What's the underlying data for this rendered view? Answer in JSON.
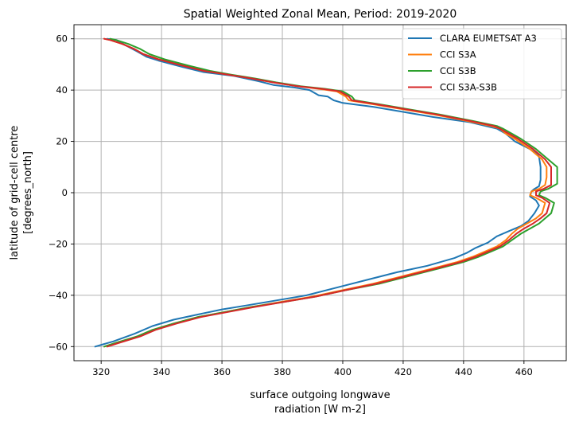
{
  "chart_data": {
    "type": "line",
    "title": "Spatial Weighted Zonal Mean, Period: 2019-2020",
    "xlabel": [
      "surface outgoing longwave",
      "radiation [W m-2]"
    ],
    "ylabel": [
      "latitude of grid-cell centre",
      "[degrees_north]"
    ],
    "xlim": [
      311,
      474
    ],
    "ylim": [
      -65.5,
      65.5
    ],
    "xticks": [
      320,
      340,
      360,
      380,
      400,
      420,
      440,
      460
    ],
    "yticks": [
      -60,
      -40,
      -20,
      0,
      20,
      40,
      60
    ],
    "grid": true,
    "legend_position": "top-right",
    "series": [
      {
        "name": "CLARA EUMETSAT A3",
        "color": "#1f77b4",
        "points": [
          [
            318,
            -60
          ],
          [
            324,
            -58
          ],
          [
            331,
            -55
          ],
          [
            337,
            -52
          ],
          [
            344,
            -49.5
          ],
          [
            352,
            -47.5
          ],
          [
            360,
            -45.5
          ],
          [
            368,
            -44
          ],
          [
            378,
            -42
          ],
          [
            388,
            -40
          ],
          [
            398,
            -37
          ],
          [
            408,
            -34
          ],
          [
            418,
            -31
          ],
          [
            428,
            -28.5
          ],
          [
            437,
            -25.5
          ],
          [
            441,
            -23.5
          ],
          [
            444,
            -21.5
          ],
          [
            448,
            -19.5
          ],
          [
            451,
            -17
          ],
          [
            455,
            -15
          ],
          [
            459,
            -13
          ],
          [
            461.5,
            -11
          ],
          [
            463.5,
            -8
          ],
          [
            465,
            -5
          ],
          [
            464,
            -3
          ],
          [
            462,
            -1.5
          ],
          [
            462.5,
            0.5
          ],
          [
            463.5,
            1.5
          ],
          [
            465,
            2.5
          ],
          [
            465.5,
            5
          ],
          [
            465.5,
            10
          ],
          [
            465,
            14
          ],
          [
            464.5,
            15
          ],
          [
            462,
            17
          ],
          [
            457,
            20
          ],
          [
            454,
            23
          ],
          [
            451,
            25
          ],
          [
            442,
            27.5
          ],
          [
            430,
            29.5
          ],
          [
            420,
            31.5
          ],
          [
            410,
            33.5
          ],
          [
            400,
            35
          ],
          [
            397,
            36
          ],
          [
            395,
            37.5
          ],
          [
            392,
            38
          ],
          [
            389,
            40
          ],
          [
            384,
            41
          ],
          [
            377,
            42
          ],
          [
            372,
            43.5
          ],
          [
            364,
            45.5
          ],
          [
            354,
            47
          ],
          [
            347,
            49
          ],
          [
            339,
            51.5
          ],
          [
            335,
            53
          ],
          [
            332,
            55
          ],
          [
            328,
            57.5
          ],
          [
            325,
            59.5
          ],
          [
            322,
            60
          ]
        ]
      },
      {
        "name": "CCI S3A",
        "color": "#ff7f0e",
        "points": [
          [
            321,
            -60
          ],
          [
            325,
            -58.5
          ],
          [
            332,
            -56
          ],
          [
            337,
            -53.5
          ],
          [
            344,
            -51
          ],
          [
            352,
            -48.5
          ],
          [
            361,
            -46.5
          ],
          [
            370,
            -44.5
          ],
          [
            380,
            -42.5
          ],
          [
            390,
            -40.5
          ],
          [
            400,
            -38
          ],
          [
            410,
            -35.5
          ],
          [
            420,
            -32.5
          ],
          [
            430,
            -29.5
          ],
          [
            438,
            -27
          ],
          [
            443,
            -25
          ],
          [
            447,
            -23
          ],
          [
            451,
            -21
          ],
          [
            454,
            -18.5
          ],
          [
            456,
            -16
          ],
          [
            458,
            -14
          ],
          [
            461,
            -12
          ],
          [
            464,
            -10
          ],
          [
            466,
            -8
          ],
          [
            467,
            -4
          ],
          [
            464,
            -2
          ],
          [
            462,
            -1
          ],
          [
            462.5,
            0.5
          ],
          [
            465,
            1.5
          ],
          [
            467,
            3
          ],
          [
            467.5,
            6
          ],
          [
            467.5,
            10
          ],
          [
            466,
            13
          ],
          [
            462,
            17
          ],
          [
            457,
            21
          ],
          [
            454,
            23
          ],
          [
            452,
            25
          ],
          [
            449,
            26
          ],
          [
            441,
            28
          ],
          [
            430,
            30.5
          ],
          [
            420,
            32.5
          ],
          [
            410,
            34.5
          ],
          [
            402,
            36
          ],
          [
            401,
            37.5
          ],
          [
            398,
            39.5
          ],
          [
            392,
            40.5
          ],
          [
            385,
            41.5
          ],
          [
            377,
            43
          ],
          [
            370,
            44.5
          ],
          [
            362,
            46
          ],
          [
            354,
            47.5
          ],
          [
            347,
            49.5
          ],
          [
            339,
            52
          ],
          [
            334,
            54
          ],
          [
            331,
            56
          ],
          [
            327,
            58
          ],
          [
            323,
            59.5
          ],
          [
            321,
            60
          ]
        ]
      },
      {
        "name": "CCI S3B",
        "color": "#2ca02c",
        "points": [
          [
            321,
            -60
          ],
          [
            325,
            -58.5
          ],
          [
            332,
            -56
          ],
          [
            337,
            -53.5
          ],
          [
            344,
            -51
          ],
          [
            352,
            -48.5
          ],
          [
            361,
            -46.5
          ],
          [
            370,
            -44.5
          ],
          [
            381,
            -42.5
          ],
          [
            391,
            -40.5
          ],
          [
            401,
            -38
          ],
          [
            412,
            -35.5
          ],
          [
            422,
            -32.5
          ],
          [
            432,
            -29.5
          ],
          [
            440,
            -27
          ],
          [
            445,
            -25
          ],
          [
            449,
            -23
          ],
          [
            453,
            -21
          ],
          [
            456,
            -18.5
          ],
          [
            459,
            -16
          ],
          [
            462,
            -14
          ],
          [
            465,
            -12
          ],
          [
            467,
            -10
          ],
          [
            469,
            -8
          ],
          [
            470,
            -4
          ],
          [
            467,
            -2
          ],
          [
            465,
            -1
          ],
          [
            465.5,
            0.5
          ],
          [
            468,
            1.5
          ],
          [
            471,
            3.5
          ],
          [
            471,
            6
          ],
          [
            471,
            10
          ],
          [
            468,
            13
          ],
          [
            464,
            17
          ],
          [
            459,
            21
          ],
          [
            456,
            23
          ],
          [
            453,
            25
          ],
          [
            451,
            26
          ],
          [
            443,
            28
          ],
          [
            432,
            30.5
          ],
          [
            422,
            32.5
          ],
          [
            412,
            34.5
          ],
          [
            404,
            36
          ],
          [
            403,
            37.5
          ],
          [
            400,
            39.5
          ],
          [
            394,
            40.5
          ],
          [
            386,
            41.5
          ],
          [
            378,
            43
          ],
          [
            371,
            44.5
          ],
          [
            363,
            46
          ],
          [
            356,
            47.5
          ],
          [
            349,
            49.5
          ],
          [
            341,
            52
          ],
          [
            336,
            54
          ],
          [
            333,
            56
          ],
          [
            329,
            58
          ],
          [
            325,
            59.5
          ],
          [
            323,
            60
          ]
        ]
      },
      {
        "name": "CCI S3A-S3B",
        "color": "#d62728",
        "points": [
          [
            322,
            -60
          ],
          [
            326,
            -58.5
          ],
          [
            333,
            -56
          ],
          [
            338,
            -53.5
          ],
          [
            345,
            -51
          ],
          [
            353,
            -48.5
          ],
          [
            362,
            -46.5
          ],
          [
            371,
            -44.5
          ],
          [
            381,
            -42.5
          ],
          [
            391,
            -40.5
          ],
          [
            401,
            -38
          ],
          [
            411,
            -35.5
          ],
          [
            421,
            -32.5
          ],
          [
            431,
            -29.5
          ],
          [
            439,
            -27
          ],
          [
            444,
            -25
          ],
          [
            448,
            -23
          ],
          [
            452,
            -21
          ],
          [
            455,
            -18.5
          ],
          [
            457.5,
            -16
          ],
          [
            460,
            -14
          ],
          [
            463,
            -12
          ],
          [
            465.5,
            -10
          ],
          [
            467.5,
            -8
          ],
          [
            468.5,
            -4
          ],
          [
            466,
            -2
          ],
          [
            464,
            -1
          ],
          [
            464,
            0.5
          ],
          [
            466.5,
            1.5
          ],
          [
            469,
            3
          ],
          [
            469,
            6
          ],
          [
            469,
            10
          ],
          [
            467,
            13
          ],
          [
            463,
            17
          ],
          [
            458,
            21
          ],
          [
            455,
            23
          ],
          [
            452,
            25
          ],
          [
            450,
            26
          ],
          [
            442,
            28
          ],
          [
            431,
            30.5
          ],
          [
            421,
            32.5
          ],
          [
            411,
            34.5
          ],
          [
            403,
            36
          ],
          [
            402,
            37.5
          ],
          [
            399,
            39.5
          ],
          [
            393,
            40.5
          ],
          [
            385,
            41.5
          ],
          [
            377,
            43
          ],
          [
            370,
            44.5
          ],
          [
            362,
            46
          ],
          [
            354,
            47.5
          ],
          [
            347,
            49.5
          ],
          [
            339,
            52
          ],
          [
            334,
            54
          ],
          [
            331,
            56
          ],
          [
            327,
            58
          ],
          [
            323,
            59.5
          ],
          [
            321,
            60
          ]
        ]
      }
    ]
  }
}
